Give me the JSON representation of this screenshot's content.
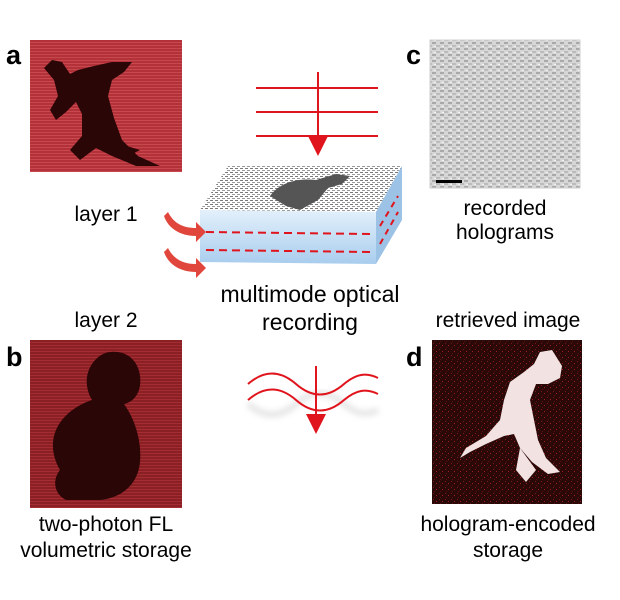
{
  "panels": {
    "a": {
      "letter": "a",
      "caption": "layer 1",
      "image": "kangaroo silhouette, fluorescence layer"
    },
    "b": {
      "letter": "b",
      "caption_top": "layer 2",
      "caption_line1": "two-photon FL",
      "caption_line2": "volumetric storage",
      "image": "koala silhouette, fluorescence layer"
    },
    "c": {
      "letter": "c",
      "caption_line1": "recorded",
      "caption_line2": "holograms",
      "image": "grey speckle hologram pattern"
    },
    "d": {
      "letter": "d",
      "caption_top": "retrieved image",
      "caption_line1": "hologram-encoded",
      "caption_line2": "storage",
      "image": "white kangaroo reconstruction on dark background"
    }
  },
  "center": {
    "caption_line1": "multimode optical",
    "caption_line2": "recording",
    "slab_image": "kangaroo pattern on storage medium",
    "icons": [
      "writing-beam-icon",
      "reading-wave-icon",
      "curved-arrow-icon"
    ]
  },
  "colors": {
    "beam": "#e0141c",
    "fluorescence_bg": "#b8343a",
    "fluorescence_dark": "#2a0607",
    "slab_side": "#bcd9f3",
    "hologram_bg": "#d4d4d4"
  }
}
